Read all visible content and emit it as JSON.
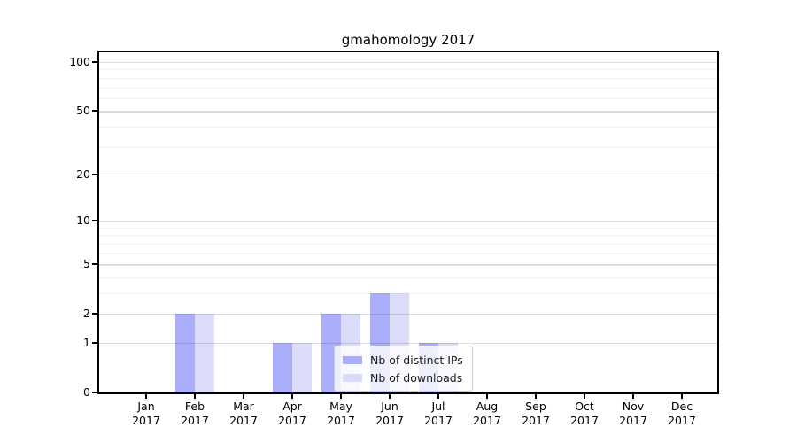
{
  "chart_data": {
    "type": "bar",
    "title": "gmahomology 2017",
    "categories": [
      "Jan 2017",
      "Feb 2017",
      "Mar 2017",
      "Apr 2017",
      "May 2017",
      "Jun 2017",
      "Jul 2017",
      "Aug 2017",
      "Sep 2017",
      "Oct 2017",
      "Nov 2017",
      "Dec 2017"
    ],
    "x_tick_months": [
      "Jan",
      "Feb",
      "Mar",
      "Apr",
      "May",
      "Jun",
      "Jul",
      "Aug",
      "Sep",
      "Oct",
      "Nov",
      "Dec"
    ],
    "x_tick_year": "2017",
    "series": [
      {
        "name": "Nb of distinct IPs",
        "color": "#abaefa",
        "values": [
          0,
          2,
          0,
          1,
          2,
          3,
          1,
          0,
          0,
          0,
          0,
          0
        ]
      },
      {
        "name": "Nb of downloads",
        "color": "#dbdcfa",
        "values": [
          0,
          2,
          0,
          1,
          2,
          3,
          1,
          0,
          0,
          0,
          0,
          0
        ]
      }
    ],
    "xlabel": "",
    "ylabel": "",
    "y_major_ticks": [
      0,
      1,
      2,
      5,
      10,
      20,
      50,
      100
    ],
    "y_minor_gridlines": [
      3,
      4,
      6,
      7,
      8,
      9,
      30,
      40,
      60,
      70,
      80,
      90
    ],
    "ylim": [
      0,
      115
    ],
    "y_scale": "log1p",
    "grid": "on",
    "legend_position": "inside-bottom-center",
    "axis_color": "#000000",
    "text_color": "#000000"
  }
}
